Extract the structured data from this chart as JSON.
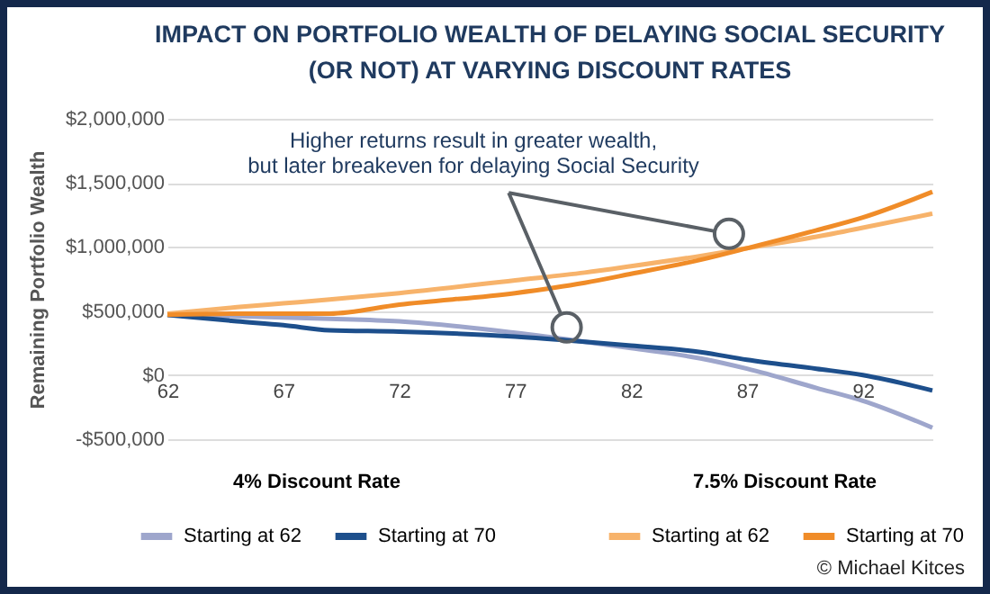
{
  "chart_data": {
    "type": "line",
    "title": "IMPACT ON PORTFOLIO WEALTH OF DELAYING SOCIAL SECURITY\n(OR NOT) AT VARYING DISCOUNT RATES",
    "ylabel": "Remaining Portfolio Wealth",
    "x": [
      62,
      65,
      67,
      69,
      72,
      77,
      80,
      82,
      85,
      87,
      90,
      92,
      95
    ],
    "series": [
      {
        "name": "Starting at 62",
        "color": "#9ea6cc",
        "values": [
          470000,
          460000,
          450000,
          440000,
          420000,
          330000,
          260000,
          210000,
          130000,
          50000,
          -100000,
          -200000,
          -410000
        ]
      },
      {
        "name": "Starting at 70",
        "color": "#1d4f8c",
        "values": [
          470000,
          420000,
          390000,
          350000,
          340000,
          300000,
          260000,
          230000,
          180000,
          120000,
          50000,
          0,
          -120000
        ]
      },
      {
        "name": "Starting at 62",
        "color": "#f7b36b",
        "values": [
          480000,
          530000,
          560000,
          590000,
          640000,
          740000,
          800000,
          850000,
          930000,
          990000,
          1080000,
          1150000,
          1260000
        ]
      },
      {
        "name": "Starting at 70",
        "color": "#f08c28",
        "values": [
          470000,
          480000,
          480000,
          480000,
          550000,
          640000,
          720000,
          790000,
          900000,
          990000,
          1130000,
          1230000,
          1430000
        ]
      }
    ],
    "legend_title": [
      "4% Discount Rate",
      "7.5% Discount Rate"
    ],
    "xlim": [
      62,
      95
    ],
    "xticks": [
      62,
      67,
      72,
      77,
      82,
      87,
      92
    ],
    "ylim": [
      -500000,
      2000000
    ],
    "yticks": [
      {
        "value": -500000,
        "label": "-$500,000"
      },
      {
        "value": 0,
        "label": "$0"
      },
      {
        "value": 500000,
        "label": "$500,000"
      },
      {
        "value": 1000000,
        "label": "$1,000,000"
      },
      {
        "value": 1500000,
        "label": "$1,500,000"
      },
      {
        "value": 2000000,
        "label": "$2,000,000"
      }
    ],
    "grid": "y",
    "legend": "bottom",
    "annotations": [
      "Higher returns result in greater wealth,\nbut later breakeven for delaying Social Security",
      "© Michael Kitces"
    ]
  }
}
